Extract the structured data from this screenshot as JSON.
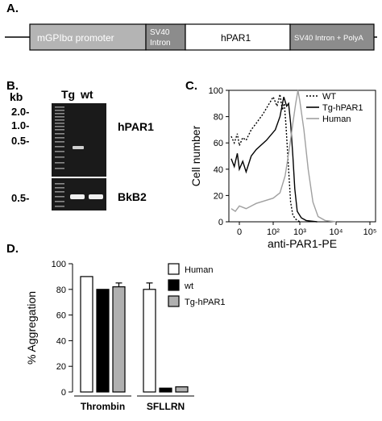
{
  "panel_a": {
    "label": "A.",
    "segments": [
      {
        "text": "mGPIbα promoter",
        "color": "#b4b4b4"
      },
      {
        "text": "SV40\nIntron",
        "color": "#8c8c8c"
      },
      {
        "text": "hPAR1",
        "color": "#ffffff"
      },
      {
        "text": "SV40 Intron + PolyA",
        "color": "#8c8c8c"
      }
    ]
  },
  "panel_b": {
    "label": "B.",
    "kb_label": "kb",
    "lane_labels": [
      "Tg",
      "wt"
    ],
    "marker_labels_top": [
      "2.0-",
      "1.0-",
      "0.5-"
    ],
    "marker_label_bottom": "0.5-",
    "gel_labels": [
      "hPAR1",
      "BkB2"
    ]
  },
  "panel_c": {
    "label": "C.",
    "chart_data": {
      "type": "line",
      "xlabel": "anti-PAR1-PE",
      "ylabel": "Cell number",
      "x_scale": "log",
      "xlim": [
        0,
        100000
      ],
      "ylim": [
        0,
        100
      ],
      "x_ticks": [
        "0",
        "10²",
        "10³",
        "10⁴",
        "10⁵"
      ],
      "y_ticks": [
        0,
        20,
        40,
        60,
        80,
        100
      ],
      "legend_position": "top-right",
      "series": [
        {
          "name": "WT",
          "color": "#000000",
          "style": "dotted",
          "points": [
            [
              -40,
              65
            ],
            [
              -25,
              60
            ],
            [
              -10,
              67
            ],
            [
              0,
              58
            ],
            [
              10,
              64
            ],
            [
              20,
              62
            ],
            [
              35,
              70
            ],
            [
              50,
              75
            ],
            [
              70,
              82
            ],
            [
              100,
              95
            ],
            [
              140,
              88
            ],
            [
              180,
              97
            ],
            [
              220,
              85
            ],
            [
              260,
              90
            ],
            [
              300,
              75
            ],
            [
              380,
              40
            ],
            [
              450,
              15
            ],
            [
              550,
              5
            ],
            [
              700,
              2
            ],
            [
              1000,
              0
            ]
          ]
        },
        {
          "name": "Tg-hPAR1",
          "color": "#000000",
          "style": "solid",
          "points": [
            [
              -40,
              48
            ],
            [
              -25,
              42
            ],
            [
              -10,
              52
            ],
            [
              0,
              40
            ],
            [
              10,
              46
            ],
            [
              20,
              38
            ],
            [
              35,
              50
            ],
            [
              50,
              55
            ],
            [
              80,
              62
            ],
            [
              120,
              70
            ],
            [
              180,
              80
            ],
            [
              250,
              95
            ],
            [
              320,
              88
            ],
            [
              380,
              90
            ],
            [
              450,
              75
            ],
            [
              550,
              50
            ],
            [
              650,
              25
            ],
            [
              800,
              8
            ],
            [
              1100,
              3
            ],
            [
              1500,
              1
            ],
            [
              3000,
              0
            ]
          ]
        },
        {
          "name": "Human",
          "color": "#a0a0a0",
          "style": "solid",
          "points": [
            [
              -40,
              10
            ],
            [
              -20,
              8
            ],
            [
              0,
              12
            ],
            [
              20,
              10
            ],
            [
              50,
              14
            ],
            [
              100,
              18
            ],
            [
              180,
              22
            ],
            [
              280,
              35
            ],
            [
              400,
              55
            ],
            [
              550,
              75
            ],
            [
              700,
              90
            ],
            [
              850,
              100
            ],
            [
              1000,
              92
            ],
            [
              1300,
              70
            ],
            [
              1700,
              40
            ],
            [
              2300,
              15
            ],
            [
              3200,
              4
            ],
            [
              5000,
              1
            ],
            [
              10000,
              0
            ]
          ]
        }
      ]
    }
  },
  "panel_d": {
    "label": "D.",
    "chart_data": {
      "type": "bar",
      "ylabel": "% Aggregation",
      "ylim": [
        0,
        100
      ],
      "y_ticks": [
        0,
        20,
        40,
        60,
        80,
        100
      ],
      "categories": [
        "Thrombin",
        "SFLLRN"
      ],
      "legend_position": "top-right",
      "series": [
        {
          "name": "Human",
          "color": "#ffffff",
          "values": [
            90,
            80
          ],
          "errors": [
            0,
            5
          ]
        },
        {
          "name": "wt",
          "color": "#000000",
          "values": [
            80,
            3
          ],
          "errors": [
            0,
            0
          ]
        },
        {
          "name": "Tg-hPAR1",
          "color": "#b0b0b0",
          "values": [
            82,
            4
          ],
          "errors": [
            3,
            0
          ]
        }
      ]
    }
  }
}
